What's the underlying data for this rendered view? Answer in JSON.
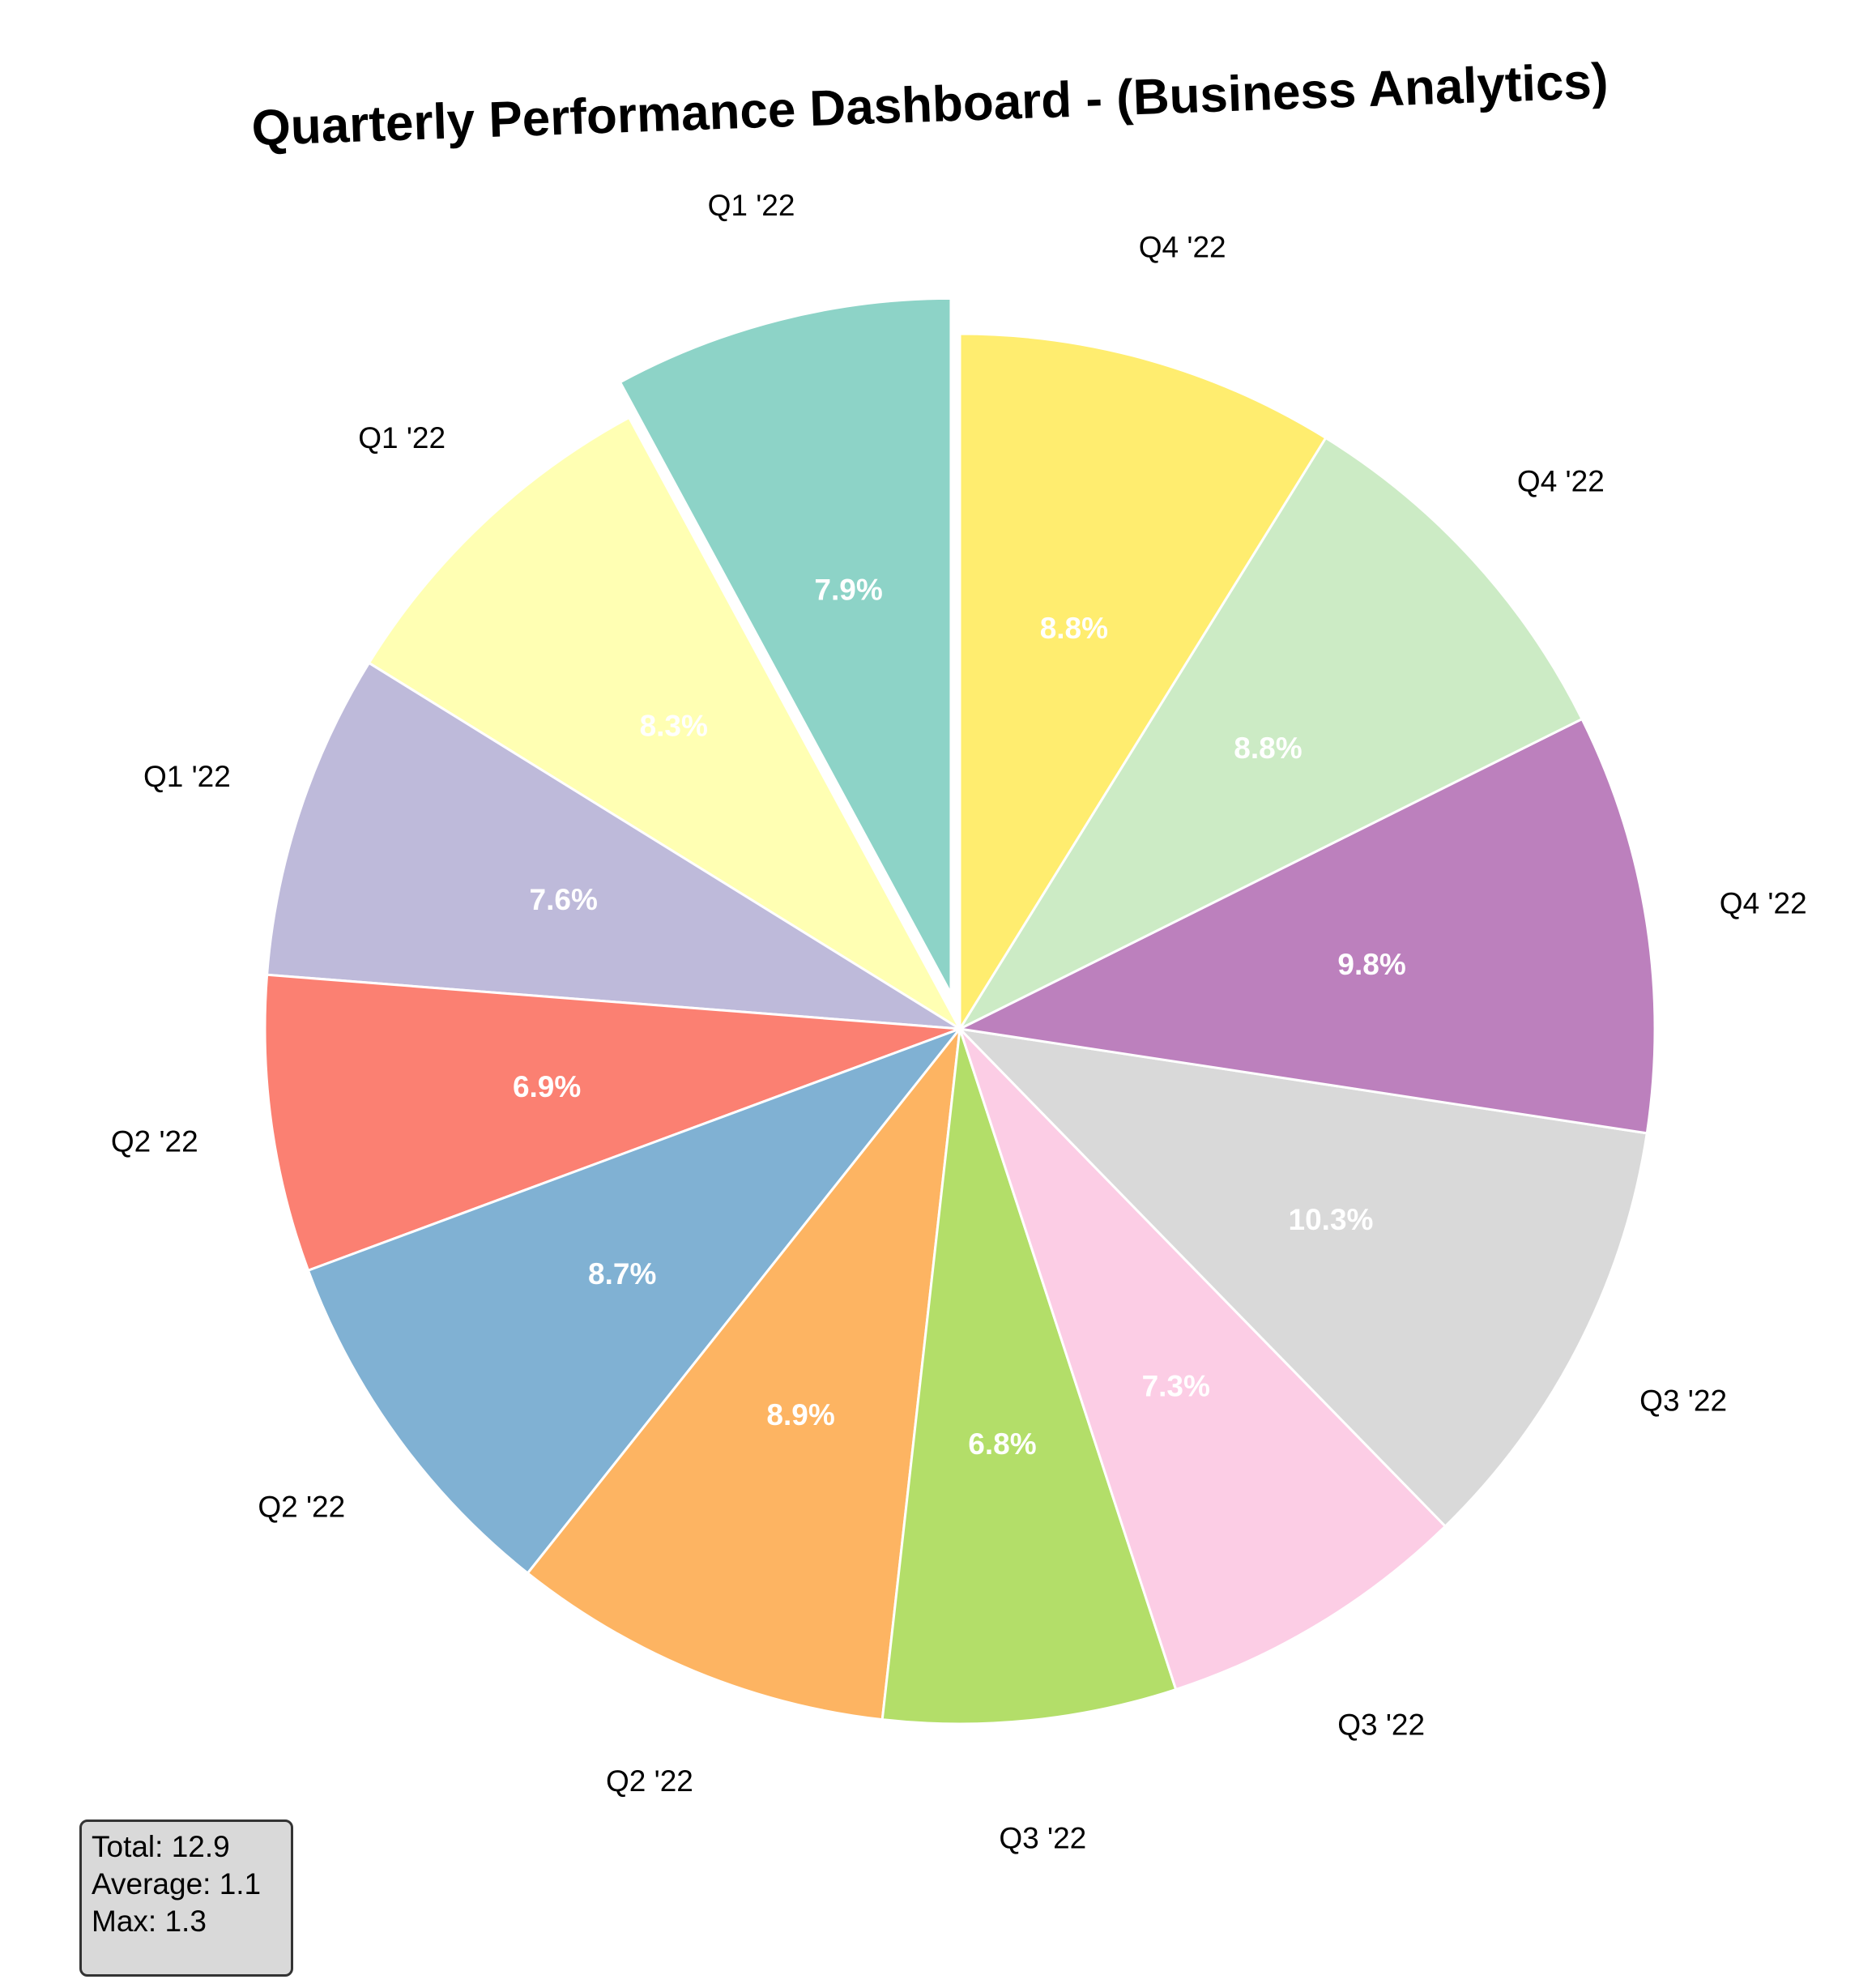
{
  "chart_data": {
    "type": "pie",
    "title": "Quarterly Performance Dashboard - (Business Analytics)",
    "slices": [
      {
        "label": "Q1 '22",
        "value": 1.02,
        "percent_label": "7.9%",
        "color": "#8dd3c7",
        "exploded": true
      },
      {
        "label": "Q1 '22",
        "value": 1.07,
        "percent_label": "8.3%",
        "color": "#ffffb3",
        "exploded": false
      },
      {
        "label": "Q1 '22",
        "value": 0.98,
        "percent_label": "7.6%",
        "color": "#bebada",
        "exploded": false
      },
      {
        "label": "Q2 '22",
        "value": 0.89,
        "percent_label": "6.9%",
        "color": "#fb8072",
        "exploded": false
      },
      {
        "label": "Q2 '22",
        "value": 1.12,
        "percent_label": "8.7%",
        "color": "#80b1d3",
        "exploded": false
      },
      {
        "label": "Q2 '22",
        "value": 1.15,
        "percent_label": "8.9%",
        "color": "#fdb462",
        "exploded": false
      },
      {
        "label": "Q3 '22",
        "value": 0.88,
        "percent_label": "6.8%",
        "color": "#b3de69",
        "exploded": false
      },
      {
        "label": "Q3 '22",
        "value": 0.94,
        "percent_label": "7.3%",
        "color": "#fccde5",
        "exploded": false
      },
      {
        "label": "Q3 '22",
        "value": 1.33,
        "percent_label": "10.3%",
        "color": "#d9d9d9",
        "exploded": false
      },
      {
        "label": "Q4 '22",
        "value": 1.26,
        "percent_label": "9.8%",
        "color": "#bc80bd",
        "exploded": false
      },
      {
        "label": "Q4 '22",
        "value": 1.14,
        "percent_label": "8.8%",
        "color": "#ccebc5",
        "exploded": false
      },
      {
        "label": "Q4 '22",
        "value": 1.14,
        "percent_label": "8.8%",
        "color": "#ffed6f",
        "exploded": false
      }
    ],
    "start_angle_deg": 90,
    "direction": "counterclockwise",
    "stats": {
      "total": "Total: 12.9",
      "average": "Average: 1.1",
      "max": "Max: 1.3"
    }
  }
}
